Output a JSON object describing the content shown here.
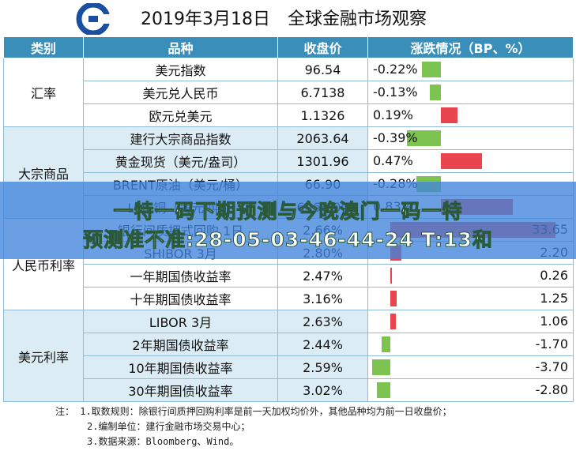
{
  "header": {
    "title": "2019年3月18日　全球金融市场观察"
  },
  "table": {
    "columns": [
      "类别",
      "品种",
      "收盘价",
      "涨跌情况（BP、%）"
    ],
    "groups": [
      {
        "category": "汇率",
        "rows": [
          {
            "name": "美元指数",
            "close": "96.54",
            "change": "-0.22%",
            "value": -0.22,
            "unit": "pct"
          },
          {
            "name": "美元兑人民币",
            "close": "6.7138",
            "change": "-0.13%",
            "value": -0.13,
            "unit": "pct"
          },
          {
            "name": "欧元兑美元",
            "close": "1.1326",
            "change": "0.19%",
            "value": 0.19,
            "unit": "pct"
          }
        ]
      },
      {
        "category": "大宗商品",
        "rows": [
          {
            "name": "建行大宗商品指数",
            "close": "2063.64",
            "change": "-0.39%",
            "value": -0.39,
            "unit": "pct"
          },
          {
            "name": "黄金现货（美元/盎司）",
            "close": "1301.96",
            "change": "0.47%",
            "value": 0.47,
            "unit": "pct"
          },
          {
            "name": "BRENT原油（美元/桶）",
            "close": "66.90",
            "change": "-0.28%",
            "value": -0.28,
            "unit": "pct"
          },
          {
            "name": "LME铜（美元/吨）",
            "close": "6464.00",
            "change": "0.83%",
            "value": 0.83,
            "unit": "pct"
          }
        ]
      },
      {
        "category": "人民币利率",
        "rows": [
          {
            "name": "银行间质押式回购 1日",
            "close": "2.66%",
            "change": "33.65",
            "value": 33.65,
            "unit": "bp"
          },
          {
            "name": "SHIBOR 3月",
            "close": "2.80%",
            "change": "2.20",
            "value": 2.2,
            "unit": "bp"
          },
          {
            "name": "一年期国债收益率",
            "close": "2.47%",
            "change": "0.26",
            "value": 0.26,
            "unit": "bp"
          },
          {
            "name": "十年期国债收益率",
            "close": "3.16%",
            "change": "1.25",
            "value": 1.25,
            "unit": "bp"
          }
        ]
      },
      {
        "category": "美元利率",
        "rows": [
          {
            "name": "LIBOR 3月",
            "close": "2.63%",
            "change": "1.06",
            "value": 1.06,
            "unit": "bp"
          },
          {
            "name": "2年期国债收益率",
            "close": "2.44%",
            "change": "-1.70",
            "value": -1.7,
            "unit": "bp"
          },
          {
            "name": "10年期国债收益率",
            "close": "2.59%",
            "change": "-3.70",
            "value": -3.7,
            "unit": "bp"
          },
          {
            "name": "30年期国债收益率",
            "close": "3.02%",
            "change": "-2.80",
            "value": -2.8,
            "unit": "bp"
          }
        ]
      }
    ]
  },
  "notes": {
    "line1": "注：  1.取数规则：除银行间质押回购利率是前一天加权均价外，其他品种均为前一日收盘价；",
    "line2": "2.编制单位：建行金融市场交易中心；",
    "line3": "3.数据来源：Bloomberg、Wind。"
  },
  "overlay": {
    "line1": "一特一码下期预测与今晚澳门一码一特",
    "line2": "预测准不准:28-05-03-46-44-24 T:13和"
  },
  "colors": {
    "header_bg": "#3a8fba",
    "positive": "#e8454f",
    "negative": "#7cc350",
    "banner": "#4184dc",
    "logo": "#1a4e9e"
  },
  "chart_data": {
    "type": "table",
    "title": "2019年3月18日　全球金融市场观察",
    "columns": [
      "类别",
      "品种",
      "收盘价",
      "涨跌情况（BP、%）"
    ],
    "x": [
      "美元指数",
      "美元兑人民币",
      "欧元兑美元",
      "建行大宗商品指数",
      "黄金现货（美元/盎司）",
      "BRENT原油（美元/桶）",
      "LME铜（美元/吨）",
      "银行间质押式回购 1日",
      "SHIBOR 3月",
      "一年期国债收益率",
      "十年期国债收益率",
      "LIBOR 3月",
      "2年期国债收益率",
      "10年期国债收益率",
      "30年期国债收益率"
    ],
    "series": [
      {
        "name": "收盘价",
        "values": [
          96.54,
          6.7138,
          1.1326,
          2063.64,
          1301.96,
          66.9,
          6464.0,
          2.66,
          2.8,
          2.47,
          3.16,
          2.63,
          2.44,
          2.59,
          3.02
        ]
      },
      {
        "name": "涨跌情况（BP、%）",
        "values": [
          -0.22,
          -0.13,
          0.19,
          -0.39,
          0.47,
          -0.28,
          0.83,
          33.65,
          2.2,
          0.26,
          1.25,
          1.06,
          -1.7,
          -3.7,
          -2.8
        ]
      }
    ]
  }
}
